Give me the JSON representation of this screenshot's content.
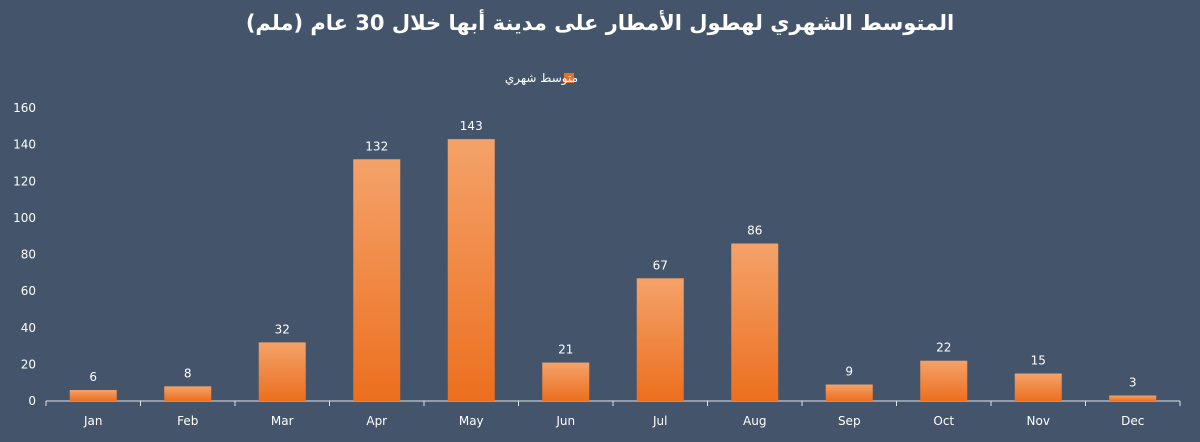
{
  "chart_data": {
    "type": "bar",
    "title": "المتوسط الشهري لهطول الأمطار على مدينة أبها خلال 30 عام (ملم)",
    "categories": [
      "Jan",
      "Feb",
      "Mar",
      "Apr",
      "May",
      "Jun",
      "Jul",
      "Aug",
      "Sep",
      "Oct",
      "Nov",
      "Dec"
    ],
    "series": [
      {
        "name": "متوسط شهري",
        "values": [
          6,
          8,
          32,
          132,
          143,
          21,
          67,
          86,
          9,
          22,
          15,
          3
        ]
      }
    ],
    "ylim": [
      0,
      160
    ],
    "yticks": [
      0,
      20,
      40,
      60,
      80,
      100,
      120,
      140,
      160
    ],
    "grid": false,
    "legend": "top-center",
    "data_labels": true
  },
  "colors": {
    "background": "#44546a",
    "bar_top": "#f4a26a",
    "bar_bottom": "#ec6f1e",
    "text": "#ffffff",
    "axis": "#e0e4ea"
  }
}
